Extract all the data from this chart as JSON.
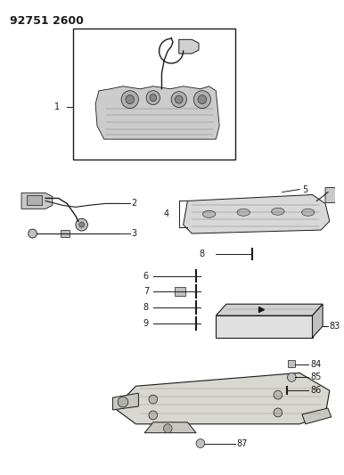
{
  "title": "92751 2600",
  "bg": "#ffffff",
  "lc": "#1a1a1a",
  "fig_w": 3.86,
  "fig_h": 5.33,
  "dpi": 100
}
